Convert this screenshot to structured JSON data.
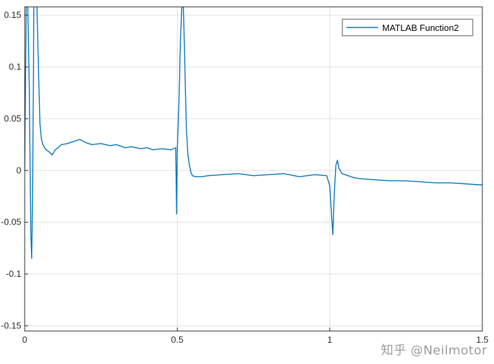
{
  "chart_data": {
    "type": "line",
    "title": "",
    "xlabel": "",
    "ylabel": "",
    "xlim": [
      0,
      1.5
    ],
    "ylim": [
      -0.155,
      0.158
    ],
    "grid": true,
    "legend_placement": "top-right",
    "x_ticks": [
      0,
      0.5,
      1,
      1.5
    ],
    "x_tick_labels": [
      "0",
      "0.5",
      "1",
      "1.5"
    ],
    "y_ticks": [
      0.15,
      0.1,
      0.05,
      0,
      -0.05,
      -0.1,
      -0.15
    ],
    "y_tick_labels": [
      "0.15",
      "0.1",
      "0.05",
      "0",
      "-0.05",
      "-0.1",
      "-0.15"
    ],
    "series": [
      {
        "name": "MATLAB Function2",
        "color": "#0072BD",
        "x": [
          0.0,
          0.005,
          0.01,
          0.015,
          0.02,
          0.023,
          0.026,
          0.03,
          0.035,
          0.04,
          0.045,
          0.05,
          0.055,
          0.06,
          0.065,
          0.07,
          0.08,
          0.09,
          0.1,
          0.11,
          0.12,
          0.14,
          0.16,
          0.18,
          0.2,
          0.22,
          0.25,
          0.28,
          0.3,
          0.33,
          0.35,
          0.38,
          0.4,
          0.42,
          0.45,
          0.48,
          0.495,
          0.498,
          0.5,
          0.505,
          0.51,
          0.515,
          0.52,
          0.525,
          0.53,
          0.535,
          0.54,
          0.545,
          0.55,
          0.56,
          0.58,
          0.6,
          0.65,
          0.7,
          0.75,
          0.8,
          0.85,
          0.9,
          0.95,
          0.99,
          1.0,
          1.005,
          1.01,
          1.015,
          1.02,
          1.025,
          1.03,
          1.04,
          1.06,
          1.08,
          1.1,
          1.15,
          1.2,
          1.25,
          1.3,
          1.35,
          1.4,
          1.45,
          1.5
        ],
        "values": [
          0.0,
          0.16,
          0.16,
          0.08,
          -0.06,
          -0.085,
          -0.02,
          0.16,
          0.16,
          0.16,
          0.1,
          0.045,
          0.03,
          0.025,
          0.022,
          0.02,
          0.018,
          0.015,
          0.02,
          0.022,
          0.025,
          0.026,
          0.028,
          0.03,
          0.027,
          0.025,
          0.026,
          0.024,
          0.025,
          0.022,
          0.023,
          0.021,
          0.022,
          0.02,
          0.021,
          0.02,
          0.022,
          -0.042,
          0.02,
          0.06,
          0.12,
          0.16,
          0.16,
          0.1,
          0.04,
          0.015,
          0.005,
          -0.002,
          -0.005,
          -0.006,
          -0.006,
          -0.005,
          -0.004,
          -0.003,
          -0.005,
          -0.004,
          -0.003,
          -0.006,
          -0.004,
          -0.005,
          -0.015,
          -0.04,
          -0.062,
          -0.02,
          0.005,
          0.01,
          0.002,
          -0.003,
          -0.005,
          -0.007,
          -0.008,
          -0.009,
          -0.01,
          -0.01,
          -0.011,
          -0.012,
          -0.012,
          -0.013,
          -0.014
        ]
      }
    ]
  },
  "watermark": "知乎 @Neilmotor"
}
